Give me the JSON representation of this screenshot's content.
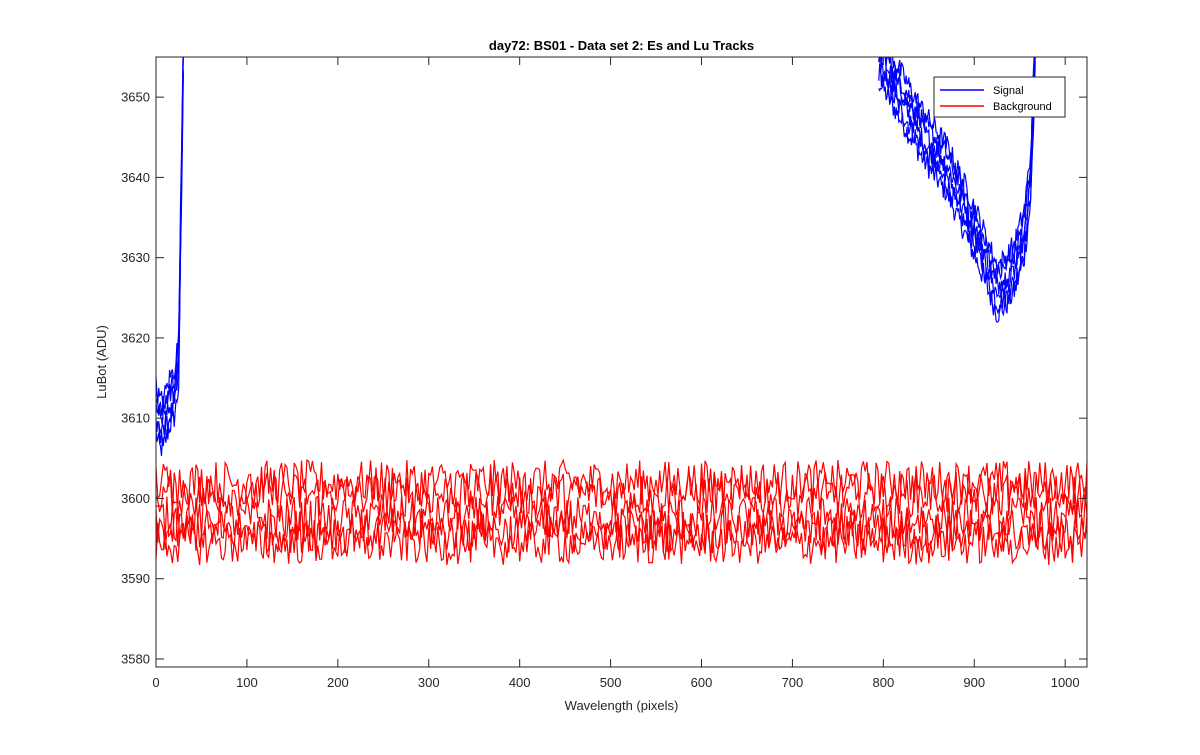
{
  "chart_data": {
    "type": "line",
    "title": "day72: BS01 - Data set 2: Es and Lu Tracks",
    "xlabel": "Wavelength (pixels)",
    "ylabel": "LuBot (ADU)",
    "xlim": [
      0,
      1024
    ],
    "ylim": [
      3579,
      3655
    ],
    "xticks": [
      0,
      100,
      200,
      300,
      400,
      500,
      600,
      700,
      800,
      900,
      1000
    ],
    "yticks": [
      3580,
      3590,
      3600,
      3610,
      3620,
      3630,
      3640,
      3650
    ],
    "grid": false,
    "legend": {
      "position": "top-right",
      "entries": [
        "Signal",
        "Background"
      ]
    },
    "series": [
      {
        "name": "Signal",
        "color": "#0000ff",
        "left_segment": {
          "x": [
            0,
            5,
            10,
            15,
            20,
            25,
            28,
            30
          ],
          "y": [
            3611,
            3609,
            3610,
            3612,
            3613,
            3617,
            3640,
            3655
          ]
        },
        "right_segment": {
          "x": [
            795,
            820,
            845,
            870,
            890,
            905,
            915,
            925,
            935,
            945,
            955,
            962,
            967
          ],
          "y": [
            3655,
            3650,
            3645,
            3641,
            3636,
            3632,
            3629,
            3626,
            3627,
            3629,
            3633,
            3640,
            3655
          ]
        },
        "traces": 6
      },
      {
        "name": "Background",
        "color": "#ff0000",
        "levels": [
          3602,
          3600.5,
          3597.5,
          3596,
          3594.5
        ],
        "noise_amplitude": 2,
        "x_range": [
          0,
          1024
        ]
      }
    ]
  }
}
